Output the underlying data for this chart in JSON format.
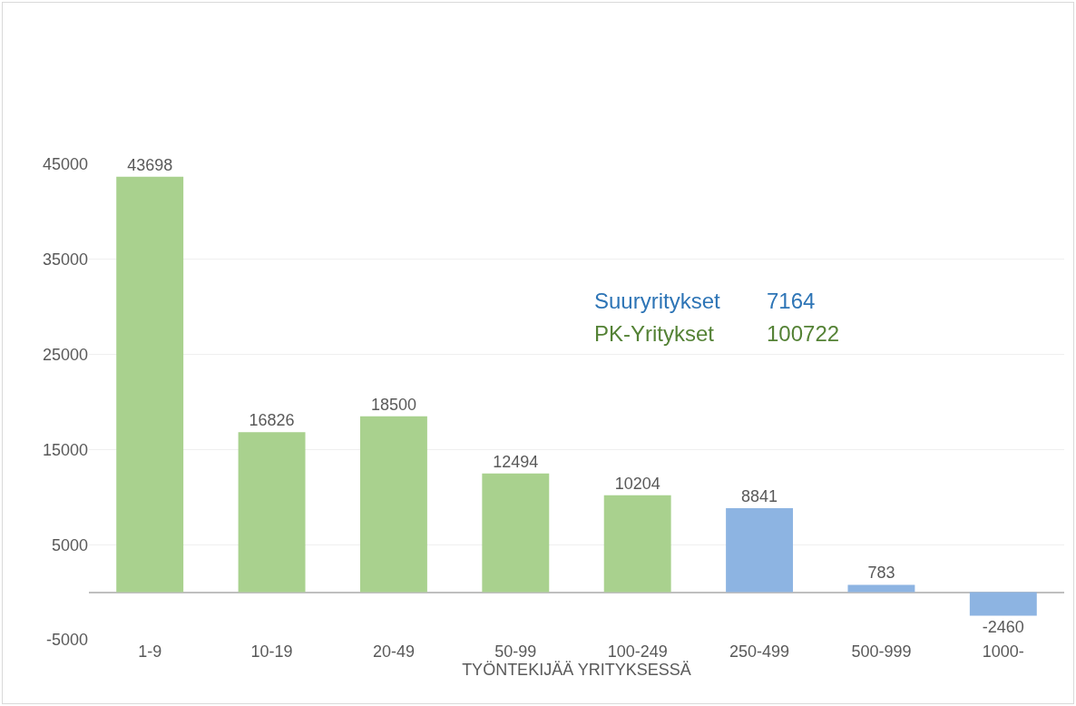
{
  "chart_data": {
    "type": "bar",
    "categories": [
      "1-9",
      "10-19",
      "20-49",
      "50-99",
      "100-249",
      "250-499",
      "500-999",
      "1000-"
    ],
    "values": [
      43698,
      16826,
      18500,
      12494,
      10204,
      8841,
      783,
      -2460
    ],
    "colors": [
      "#a9d18e",
      "#a9d18e",
      "#a9d18e",
      "#a9d18e",
      "#a9d18e",
      "#8db4e2",
      "#8db4e2",
      "#8db4e2"
    ],
    "xlabel": "TYÖNTEKIJÄÄ YRITYKSESSÄ",
    "ylim": [
      -5000,
      45000
    ],
    "yticks": [
      -5000,
      5000,
      15000,
      25000,
      35000,
      45000
    ],
    "grid": "y",
    "data_labels": true,
    "legend": false,
    "annotations": [
      "Suuryritykset",
      "7164",
      "PK-Yritykset",
      "100722"
    ]
  }
}
